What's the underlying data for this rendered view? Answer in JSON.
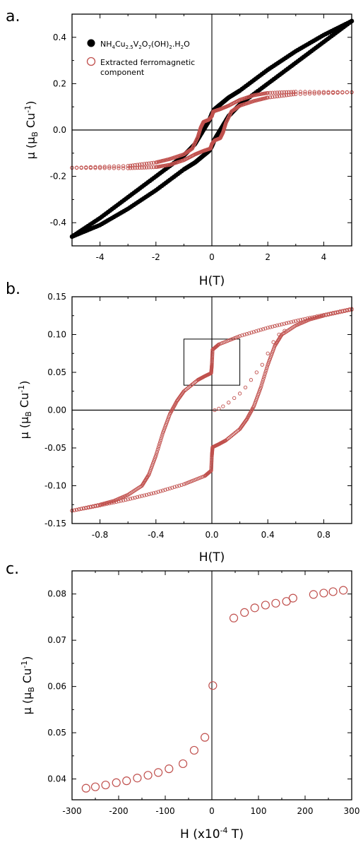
{
  "colors": {
    "magnetic": "#c0504d",
    "raw": "#000000",
    "axis": "#000000"
  },
  "chart_data": [
    {
      "panel_label": "a.",
      "type": "scatter",
      "xlabel": "H(T)",
      "ylabel_main": "μ (μ",
      "ylabel_sub": "B",
      "ylabel_tail": " Cu",
      "ylabel_sup": "-1",
      "ylabel_close": ")",
      "xlim": [
        -5,
        5
      ],
      "ylim": [
        -0.5,
        0.5
      ],
      "x_ticks": [
        -4,
        -2,
        0,
        2,
        4
      ],
      "x_tick_labels": [
        "-4",
        "-2",
        "0",
        "2",
        "4"
      ],
      "y_ticks": [
        -0.4,
        -0.2,
        0.0,
        0.2,
        0.4
      ],
      "y_tick_labels": [
        "-0.4",
        "-0.2",
        "0.0",
        "0.2",
        "0.4"
      ],
      "legend_position": "top-left",
      "legend": [
        {
          "marker": "filled-circle",
          "text": "NH4Cu2.5V2O7(OH)2·H2O"
        },
        {
          "marker": "open-circle",
          "text_line1": "Extracted ferromagnetic",
          "text_line2": "component"
        }
      ],
      "series": [
        {
          "name": "NH4Cu2.5V2O7(OH)2·H2O",
          "marker": "filled",
          "branch_down": {
            "x": [
              5,
              4,
              3,
              2,
              1,
              0.6,
              0.3,
              0.1,
              0,
              -0.1,
              -0.3,
              -0.6,
              -1,
              -2,
              -3,
              -4,
              -5
            ],
            "y": [
              0.47,
              0.41,
              0.34,
              0.26,
              0.17,
              0.14,
              0.11,
              0.09,
              0.07,
              0.04,
              0.0,
              -0.06,
              -0.11,
              -0.2,
              -0.29,
              -0.38,
              -0.46
            ]
          },
          "branch_up": {
            "x": [
              -5,
              -4,
              -3,
              -2,
              -1,
              -0.6,
              -0.3,
              -0.1,
              0,
              0.1,
              0.3,
              0.6,
              1,
              2,
              3,
              4,
              5
            ],
            "y": [
              -0.46,
              -0.41,
              -0.34,
              -0.26,
              -0.17,
              -0.14,
              -0.11,
              -0.09,
              -0.07,
              -0.04,
              0.0,
              0.06,
              0.11,
              0.2,
              0.29,
              0.38,
              0.47
            ]
          }
        },
        {
          "name": "Extracted ferromagnetic component",
          "marker": "open",
          "branch_down": {
            "x": [
              5,
              3,
              2,
              1.5,
              1,
              0.6,
              0.3,
              0.05,
              0,
              -0.1,
              -0.3,
              -0.4,
              -0.5,
              -0.7,
              -1,
              -1.5,
              -2,
              -3,
              -5
            ],
            "y": [
              0.163,
              0.165,
              0.16,
              0.15,
              0.13,
              0.105,
              0.09,
              0.08,
              0.06,
              0.045,
              0.035,
              0.01,
              -0.03,
              -0.08,
              -0.105,
              -0.125,
              -0.14,
              -0.155,
              -0.163
            ]
          },
          "branch_up": {
            "x": [
              -5,
              -3,
              -2,
              -1.5,
              -1,
              -0.6,
              -0.3,
              -0.05,
              0,
              0.1,
              0.3,
              0.4,
              0.5,
              0.7,
              1,
              1.5,
              2,
              3,
              5
            ],
            "y": [
              -0.163,
              -0.165,
              -0.16,
              -0.15,
              -0.13,
              -0.105,
              -0.09,
              -0.08,
              -0.06,
              -0.045,
              -0.035,
              -0.01,
              0.03,
              0.08,
              0.105,
              0.125,
              0.14,
              0.155,
              0.163
            ]
          }
        }
      ]
    },
    {
      "panel_label": "b.",
      "type": "scatter",
      "xlabel": "H(T)",
      "ylabel_main": "μ (μ",
      "ylabel_sub": "B",
      "ylabel_tail": " Cu",
      "ylabel_sup": "-1",
      "ylabel_close": ")",
      "xlim": [
        -1,
        1
      ],
      "ylim": [
        -0.15,
        0.15
      ],
      "x_ticks": [
        -0.8,
        -0.4,
        0.0,
        0.4,
        0.8
      ],
      "x_tick_labels": [
        "-0.8",
        "-0.4",
        "0.0",
        "0.4",
        "0.8"
      ],
      "y_ticks": [
        -0.15,
        -0.1,
        -0.05,
        0.0,
        0.05,
        0.1,
        0.15
      ],
      "y_tick_labels": [
        "-0.15",
        "-0.10",
        "-0.05",
        "0.00",
        "0.05",
        "0.10",
        "0.15"
      ],
      "inset_box": {
        "x": [
          -0.2,
          0.2
        ],
        "y": [
          0.033,
          0.094
        ]
      },
      "series": [
        {
          "name": "",
          "marker": "open",
          "branch_down": {
            "x": [
              1.0,
              0.8,
              0.6,
              0.4,
              0.2,
              0.05,
              0.005,
              0.0,
              -0.005,
              -0.05,
              -0.1,
              -0.2,
              -0.25,
              -0.3,
              -0.35,
              -0.4,
              -0.45,
              -0.5,
              -0.6,
              -0.7,
              -0.8,
              -1.0
            ],
            "y": [
              0.134,
              0.126,
              0.118,
              0.109,
              0.098,
              0.087,
              0.08,
              0.06,
              0.049,
              0.045,
              0.04,
              0.025,
              0.012,
              -0.005,
              -0.03,
              -0.06,
              -0.085,
              -0.1,
              -0.112,
              -0.12,
              -0.125,
              -0.133
            ]
          },
          "branch_up": {
            "x": [
              -1.0,
              -0.8,
              -0.6,
              -0.4,
              -0.2,
              -0.05,
              -0.005,
              0.0,
              0.005,
              0.05,
              0.1,
              0.2,
              0.25,
              0.3,
              0.35,
              0.4,
              0.45,
              0.5,
              0.6,
              0.7,
              0.8,
              1.0
            ],
            "y": [
              -0.133,
              -0.126,
              -0.118,
              -0.109,
              -0.098,
              -0.087,
              -0.08,
              -0.06,
              -0.049,
              -0.045,
              -0.04,
              -0.025,
              -0.012,
              0.005,
              0.03,
              0.06,
              0.085,
              0.1,
              0.112,
              0.12,
              0.125,
              0.133
            ]
          },
          "virgin": {
            "x": [
              0.02,
              0.05,
              0.08,
              0.12,
              0.16,
              0.2,
              0.24,
              0.28,
              0.32,
              0.36,
              0.4,
              0.44,
              0.48,
              0.52
            ],
            "y": [
              0.0,
              0.002,
              0.005,
              0.01,
              0.016,
              0.022,
              0.03,
              0.04,
              0.05,
              0.06,
              0.075,
              0.09,
              0.1,
              0.105
            ]
          }
        }
      ]
    },
    {
      "panel_label": "c.",
      "type": "scatter",
      "xlabel": "H (x10",
      "xlabel_sup": "-4",
      "xlabel_tail": " T)",
      "ylabel_main": "μ (μ",
      "ylabel_sub": "B",
      "ylabel_tail": " Cu",
      "ylabel_sup": "-1",
      "ylabel_close": ")",
      "xlim": [
        -300,
        300
      ],
      "ylim": [
        0.0355,
        0.085
      ],
      "x_ticks": [
        -300,
        -200,
        -100,
        0,
        100,
        200,
        300
      ],
      "x_tick_labels": [
        "-300",
        "-200",
        "-100",
        "0",
        "100",
        "200",
        "300"
      ],
      "y_ticks": [
        0.04,
        0.05,
        0.06,
        0.07,
        0.08
      ],
      "y_tick_labels": [
        "0.04",
        "0.05",
        "0.06",
        "0.07",
        "0.08"
      ],
      "series": [
        {
          "name": "",
          "marker": "open",
          "x": [
            -270,
            -250,
            -228,
            -205,
            -183,
            -160,
            -137,
            -115,
            -92,
            -62,
            -38,
            -15,
            2,
            47,
            70,
            92,
            115,
            137,
            160,
            174,
            218,
            240,
            260,
            282
          ],
          "y": [
            0.038,
            0.0383,
            0.0387,
            0.0392,
            0.0396,
            0.0402,
            0.0408,
            0.0414,
            0.0422,
            0.0433,
            0.0462,
            0.049,
            0.0602,
            0.0748,
            0.076,
            0.077,
            0.0776,
            0.078,
            0.0784,
            0.0791,
            0.0799,
            0.0802,
            0.0805,
            0.0808
          ]
        }
      ]
    }
  ]
}
